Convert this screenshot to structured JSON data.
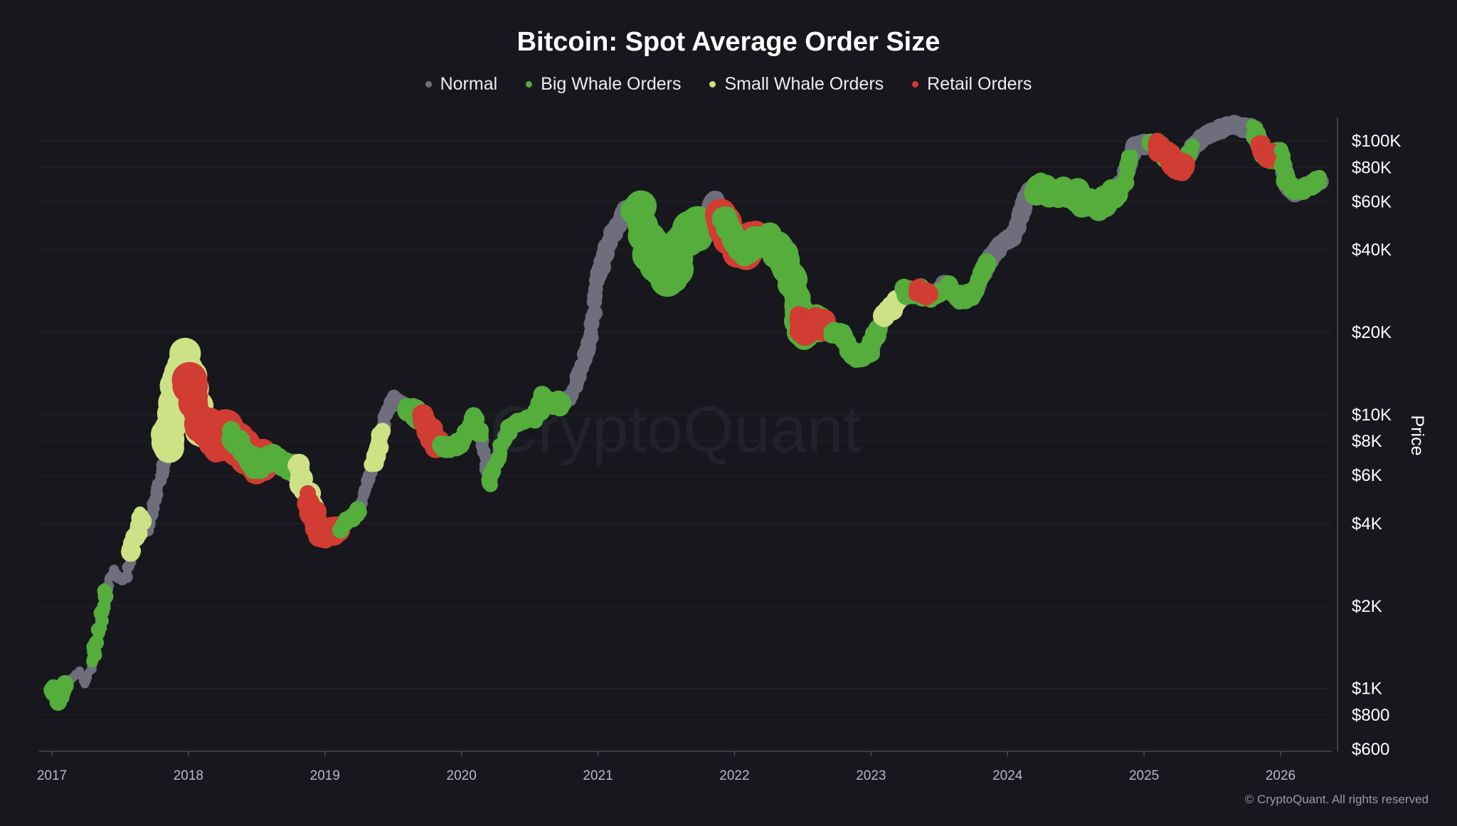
{
  "chart_data": {
    "type": "scatter",
    "title": "Bitcoin: Spot Average Order Size",
    "ylabel": "Price",
    "yscale": "log",
    "ylim": [
      600,
      140000
    ],
    "xlim": [
      2016.9,
      2026.4
    ],
    "grid": true,
    "legend_position": "top",
    "watermark": "CryptoQuant",
    "x_ticks": [
      "2017",
      "2018",
      "2019",
      "2020",
      "2021",
      "2022",
      "2023",
      "2024",
      "2025",
      "2026"
    ],
    "y_ticks": [
      {
        "value": 100000,
        "label": "$100K"
      },
      {
        "value": 80000,
        "label": "$80K"
      },
      {
        "value": 60000,
        "label": "$60K"
      },
      {
        "value": 40000,
        "label": "$40K"
      },
      {
        "value": 20000,
        "label": "$20K"
      },
      {
        "value": 10000,
        "label": "$10K"
      },
      {
        "value": 8000,
        "label": "$8K"
      },
      {
        "value": 6000,
        "label": "$6K"
      },
      {
        "value": 4000,
        "label": "$4K"
      },
      {
        "value": 2000,
        "label": "$2K"
      },
      {
        "value": 1000,
        "label": "$1K"
      },
      {
        "value": 800,
        "label": "$800"
      },
      {
        "value": 600,
        "label": "$600"
      }
    ],
    "series": [
      {
        "name": "Normal",
        "color": "#6e6e7c"
      },
      {
        "name": "Big Whale Orders",
        "color": "#55ad3c"
      },
      {
        "name": "Small Whale Orders",
        "color": "#cde185"
      },
      {
        "name": "Retail Orders",
        "color": "#d13c33"
      }
    ],
    "price_path": [
      [
        2017.0,
        1000
      ],
      [
        2017.05,
        900
      ],
      [
        2017.1,
        1050
      ],
      [
        2017.2,
        1150
      ],
      [
        2017.25,
        1050
      ],
      [
        2017.3,
        1250
      ],
      [
        2017.35,
        1700
      ],
      [
        2017.4,
        2300
      ],
      [
        2017.45,
        2700
      ],
      [
        2017.5,
        2500
      ],
      [
        2017.55,
        2600
      ],
      [
        2017.6,
        3500
      ],
      [
        2017.65,
        4300
      ],
      [
        2017.7,
        3700
      ],
      [
        2017.75,
        4800
      ],
      [
        2017.8,
        6000
      ],
      [
        2017.85,
        7500
      ],
      [
        2017.9,
        11000
      ],
      [
        2017.97,
        16000
      ],
      [
        2018.0,
        14000
      ],
      [
        2018.05,
        11000
      ],
      [
        2018.1,
        8500
      ],
      [
        2018.15,
        9000
      ],
      [
        2018.2,
        8000
      ],
      [
        2018.3,
        8500
      ],
      [
        2018.4,
        7500
      ],
      [
        2018.5,
        6500
      ],
      [
        2018.6,
        7000
      ],
      [
        2018.7,
        6500
      ],
      [
        2018.8,
        6300
      ],
      [
        2018.88,
        5000
      ],
      [
        2018.95,
        3800
      ],
      [
        2019.0,
        3700
      ],
      [
        2019.1,
        3800
      ],
      [
        2019.25,
        4500
      ],
      [
        2019.35,
        6500
      ],
      [
        2019.45,
        10000
      ],
      [
        2019.5,
        11500
      ],
      [
        2019.6,
        10500
      ],
      [
        2019.7,
        9800
      ],
      [
        2019.8,
        8000
      ],
      [
        2019.9,
        7500
      ],
      [
        2020.0,
        8000
      ],
      [
        2020.1,
        9800
      ],
      [
        2020.15,
        8000
      ],
      [
        2020.2,
        5500
      ],
      [
        2020.25,
        6800
      ],
      [
        2020.35,
        9000
      ],
      [
        2020.45,
        9500
      ],
      [
        2020.55,
        9800
      ],
      [
        2020.6,
        11500
      ],
      [
        2020.7,
        10800
      ],
      [
        2020.8,
        11500
      ],
      [
        2020.85,
        13500
      ],
      [
        2020.95,
        19000
      ],
      [
        2021.0,
        32000
      ],
      [
        2021.1,
        45000
      ],
      [
        2021.2,
        56000
      ],
      [
        2021.3,
        57000
      ],
      [
        2021.38,
        42000
      ],
      [
        2021.45,
        35000
      ],
      [
        2021.55,
        33000
      ],
      [
        2021.65,
        45000
      ],
      [
        2021.75,
        48000
      ],
      [
        2021.85,
        62000
      ],
      [
        2021.95,
        48000
      ],
      [
        2022.05,
        40000
      ],
      [
        2022.15,
        42000
      ],
      [
        2022.25,
        44000
      ],
      [
        2022.35,
        38000
      ],
      [
        2022.45,
        28000
      ],
      [
        2022.5,
        20000
      ],
      [
        2022.6,
        22000
      ],
      [
        2022.7,
        20000
      ],
      [
        2022.8,
        19500
      ],
      [
        2022.88,
        16500
      ],
      [
        2023.0,
        17000
      ],
      [
        2023.05,
        21000
      ],
      [
        2023.15,
        24000
      ],
      [
        2023.25,
        28000
      ],
      [
        2023.35,
        28500
      ],
      [
        2023.45,
        27000
      ],
      [
        2023.55,
        30000
      ],
      [
        2023.65,
        26500
      ],
      [
        2023.75,
        27500
      ],
      [
        2023.85,
        36000
      ],
      [
        2023.95,
        42000
      ],
      [
        2024.05,
        45000
      ],
      [
        2024.15,
        65000
      ],
      [
        2024.25,
        68000
      ],
      [
        2024.35,
        63000
      ],
      [
        2024.45,
        66000
      ],
      [
        2024.55,
        60000
      ],
      [
        2024.65,
        58000
      ],
      [
        2024.75,
        63000
      ],
      [
        2024.85,
        70000
      ],
      [
        2024.92,
        95000
      ],
      [
        2025.0,
        97000
      ],
      [
        2025.1,
        96000
      ],
      [
        2025.2,
        84000
      ],
      [
        2025.28,
        80000
      ],
      [
        2025.35,
        95000
      ],
      [
        2025.45,
        105000
      ],
      [
        2025.55,
        110000
      ],
      [
        2025.65,
        115000
      ],
      [
        2025.72,
        112000
      ],
      [
        2025.8,
        110000
      ],
      [
        2025.88,
        90000
      ],
      [
        2025.95,
        87000
      ],
      [
        2026.0,
        90000
      ],
      [
        2026.05,
        70000
      ],
      [
        2026.1,
        65000
      ],
      [
        2026.2,
        68000
      ],
      [
        2026.3,
        72000
      ]
    ],
    "orders": [
      {
        "category": "Small Whale Orders",
        "x_range": [
          2017.85,
          2018.12
        ],
        "weight": 3.0
      },
      {
        "category": "Retail Orders",
        "x_range": [
          2018.0,
          2018.55
        ],
        "weight": 3.0
      },
      {
        "category": "Big Whale Orders",
        "x_range": [
          2017.0,
          2017.1
        ],
        "weight": 0.9
      },
      {
        "category": "Big Whale Orders",
        "x_range": [
          2017.3,
          2017.4
        ],
        "weight": 0.7
      },
      {
        "category": "Small Whale Orders",
        "x_range": [
          2017.58,
          2017.66
        ],
        "weight": 1.2
      },
      {
        "category": "Big Whale Orders",
        "x_range": [
          2018.3,
          2018.6
        ],
        "weight": 1.5
      },
      {
        "category": "Big Whale Orders",
        "x_range": [
          2018.62,
          2018.82
        ],
        "weight": 1.4
      },
      {
        "category": "Small Whale Orders",
        "x_range": [
          2018.8,
          2018.92
        ],
        "weight": 1.6
      },
      {
        "category": "Retail Orders",
        "x_range": [
          2018.88,
          2019.12
        ],
        "weight": 1.7
      },
      {
        "category": "Big Whale Orders",
        "x_range": [
          2019.1,
          2019.25
        ],
        "weight": 0.8
      },
      {
        "category": "Small Whale Orders",
        "x_range": [
          2019.35,
          2019.42
        ],
        "weight": 1.2
      },
      {
        "category": "Big Whale Orders",
        "x_range": [
          2019.6,
          2019.7
        ],
        "weight": 1.4
      },
      {
        "category": "Retail Orders",
        "x_range": [
          2019.7,
          2019.85
        ],
        "weight": 1.6
      },
      {
        "category": "Big Whale Orders",
        "x_range": [
          2019.85,
          2020.15
        ],
        "weight": 1.1
      },
      {
        "category": "Big Whale Orders",
        "x_range": [
          2020.2,
          2020.55
        ],
        "weight": 0.9
      },
      {
        "category": "Big Whale Orders",
        "x_range": [
          2020.55,
          2020.75
        ],
        "weight": 1.2
      },
      {
        "category": "Big Whale Orders",
        "x_range": [
          2021.28,
          2021.75
        ],
        "weight": 3.0
      },
      {
        "category": "Retail Orders",
        "x_range": [
          2021.9,
          2022.15
        ],
        "weight": 2.6
      },
      {
        "category": "Big Whale Orders",
        "x_range": [
          2021.92,
          2022.25
        ],
        "weight": 1.8
      },
      {
        "category": "Big Whale Orders",
        "x_range": [
          2022.28,
          2022.5
        ],
        "weight": 2.2
      },
      {
        "category": "Big Whale Orders",
        "x_range": [
          2022.45,
          2022.65
        ],
        "weight": 2.0
      },
      {
        "category": "Retail Orders",
        "x_range": [
          2022.48,
          2022.68
        ],
        "weight": 1.7
      },
      {
        "category": "Big Whale Orders",
        "x_range": [
          2022.7,
          2022.85
        ],
        "weight": 1.0
      },
      {
        "category": "Big Whale Orders",
        "x_range": [
          2022.85,
          2023.05
        ],
        "weight": 1.3
      },
      {
        "category": "Small Whale Orders",
        "x_range": [
          2023.1,
          2023.2
        ],
        "weight": 1.4
      },
      {
        "category": "Big Whale Orders",
        "x_range": [
          2023.25,
          2023.5
        ],
        "weight": 1.2
      },
      {
        "category": "Retail Orders",
        "x_range": [
          2023.33,
          2023.43
        ],
        "weight": 1.1
      },
      {
        "category": "Big Whale Orders",
        "x_range": [
          2023.55,
          2023.85
        ],
        "weight": 1.1
      },
      {
        "category": "Big Whale Orders",
        "x_range": [
          2024.2,
          2024.8
        ],
        "weight": 1.8
      },
      {
        "category": "Big Whale Orders",
        "x_range": [
          2024.8,
          2024.9
        ],
        "weight": 0.8
      },
      {
        "category": "Big Whale Orders",
        "x_range": [
          2025.05,
          2025.35
        ],
        "weight": 1.0
      },
      {
        "category": "Retail Orders",
        "x_range": [
          2025.1,
          2025.3
        ],
        "weight": 1.5
      },
      {
        "category": "Big Whale Orders",
        "x_range": [
          2025.8,
          2026.05
        ],
        "weight": 1.2
      },
      {
        "category": "Retail Orders",
        "x_range": [
          2025.85,
          2025.95
        ],
        "weight": 1.4
      },
      {
        "category": "Big Whale Orders",
        "x_range": [
          2026.0,
          2026.3
        ],
        "weight": 0.9
      }
    ]
  },
  "footer": {
    "copyright": "© CryptoQuant. All rights reserved"
  }
}
